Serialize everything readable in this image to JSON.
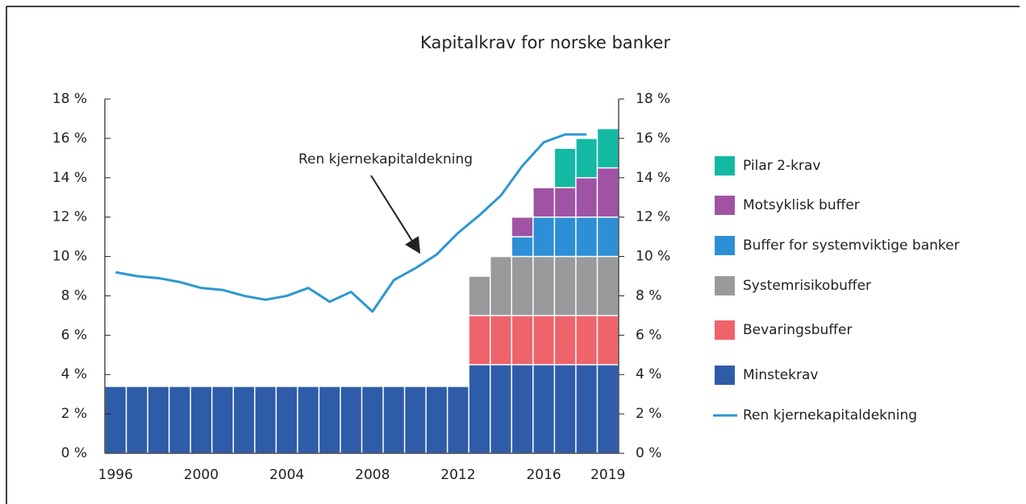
{
  "chart_data": {
    "type": "bar",
    "stacked": true,
    "title": "Kapitalkrav for norske banker",
    "annotation": "Ren kjernekapitaldekning",
    "categories": [
      "1996",
      null,
      null,
      null,
      "2000",
      null,
      null,
      null,
      "2004",
      null,
      null,
      null,
      "2008",
      null,
      null,
      null,
      "2012",
      null,
      null,
      null,
      "2016",
      null,
      null,
      "2019"
    ],
    "series": [
      {
        "name": "Minstekrav",
        "color": "#2f5ca8",
        "values": [
          3.4,
          3.4,
          3.4,
          3.4,
          3.4,
          3.4,
          3.4,
          3.4,
          3.4,
          3.4,
          3.4,
          3.4,
          3.4,
          3.4,
          3.4,
          3.4,
          3.4,
          4.5,
          4.5,
          4.5,
          4.5,
          4.5,
          4.5,
          4.5
        ]
      },
      {
        "name": "Bevaringsbuffer",
        "color": "#ef646b",
        "values": [
          null,
          null,
          null,
          null,
          null,
          null,
          null,
          null,
          null,
          null,
          null,
          null,
          null,
          null,
          null,
          null,
          null,
          2.5,
          2.5,
          2.5,
          2.5,
          2.5,
          2.5,
          2.5
        ]
      },
      {
        "name": "Systemrisikobuffer",
        "color": "#999a9c",
        "values": [
          null,
          null,
          null,
          null,
          null,
          null,
          null,
          null,
          null,
          null,
          null,
          null,
          null,
          null,
          null,
          null,
          null,
          2,
          3,
          3,
          3,
          3,
          3,
          3
        ]
      },
      {
        "name": "Buffer for systemviktige banker",
        "color": "#2d8fd5",
        "values": [
          null,
          null,
          null,
          null,
          null,
          null,
          null,
          null,
          null,
          null,
          null,
          null,
          null,
          null,
          null,
          null,
          null,
          null,
          null,
          1,
          2,
          2,
          2,
          2
        ]
      },
      {
        "name": "Motsyklisk buffer",
        "color": "#a053a5",
        "values": [
          null,
          null,
          null,
          null,
          null,
          null,
          null,
          null,
          null,
          null,
          null,
          null,
          null,
          null,
          null,
          null,
          null,
          null,
          null,
          1,
          1.5,
          1.5,
          2,
          2.5
        ]
      },
      {
        "name": "Pilar 2-krav",
        "color": "#13b9a2",
        "values": [
          null,
          null,
          null,
          null,
          null,
          null,
          null,
          null,
          null,
          null,
          null,
          null,
          null,
          null,
          null,
          null,
          null,
          null,
          null,
          null,
          null,
          2,
          2,
          2
        ]
      },
      {
        "name": "Ren kjernekapitaldekning",
        "type": "line",
        "color": "#2c96d2",
        "values": [
          9.2,
          9.0,
          8.9,
          8.7,
          8.4,
          8.3,
          8.0,
          7.8,
          8.0,
          8.4,
          7.7,
          8.2,
          7.2,
          8.8,
          9.4,
          10.1,
          11.2,
          12.1,
          13.1,
          14.6,
          15.8,
          16.2,
          16.2,
          null
        ]
      }
    ],
    "ylim": [
      0,
      18
    ],
    "yticks": [
      {
        "value": 0,
        "label": "0 %"
      },
      {
        "value": 2,
        "label": "2 %"
      },
      {
        "value": 4,
        "label": "4 %"
      },
      {
        "value": 6,
        "label": "6 %"
      },
      {
        "value": 8,
        "label": "8 %"
      },
      {
        "value": 10,
        "label": "10 %"
      },
      {
        "value": 12,
        "label": "12 %"
      },
      {
        "value": 14,
        "label": "14 %"
      },
      {
        "value": 16,
        "label": "16 %"
      },
      {
        "value": 18,
        "label": "18 %"
      }
    ],
    "y2lim": [
      0,
      18
    ],
    "y2ticks": [
      {
        "value": 0,
        "label": "0 %"
      },
      {
        "value": 2,
        "label": "2 %"
      },
      {
        "value": 4,
        "label": "4 %"
      },
      {
        "value": 6,
        "label": "6 %"
      },
      {
        "value": 8,
        "label": "8 %"
      },
      {
        "value": 10,
        "label": "10 %"
      },
      {
        "value": 12,
        "label": "12 %"
      },
      {
        "value": 14,
        "label": "14 %"
      },
      {
        "value": 16,
        "label": "16 %"
      },
      {
        "value": 18,
        "label": "18 %"
      }
    ],
    "legend": "right"
  }
}
